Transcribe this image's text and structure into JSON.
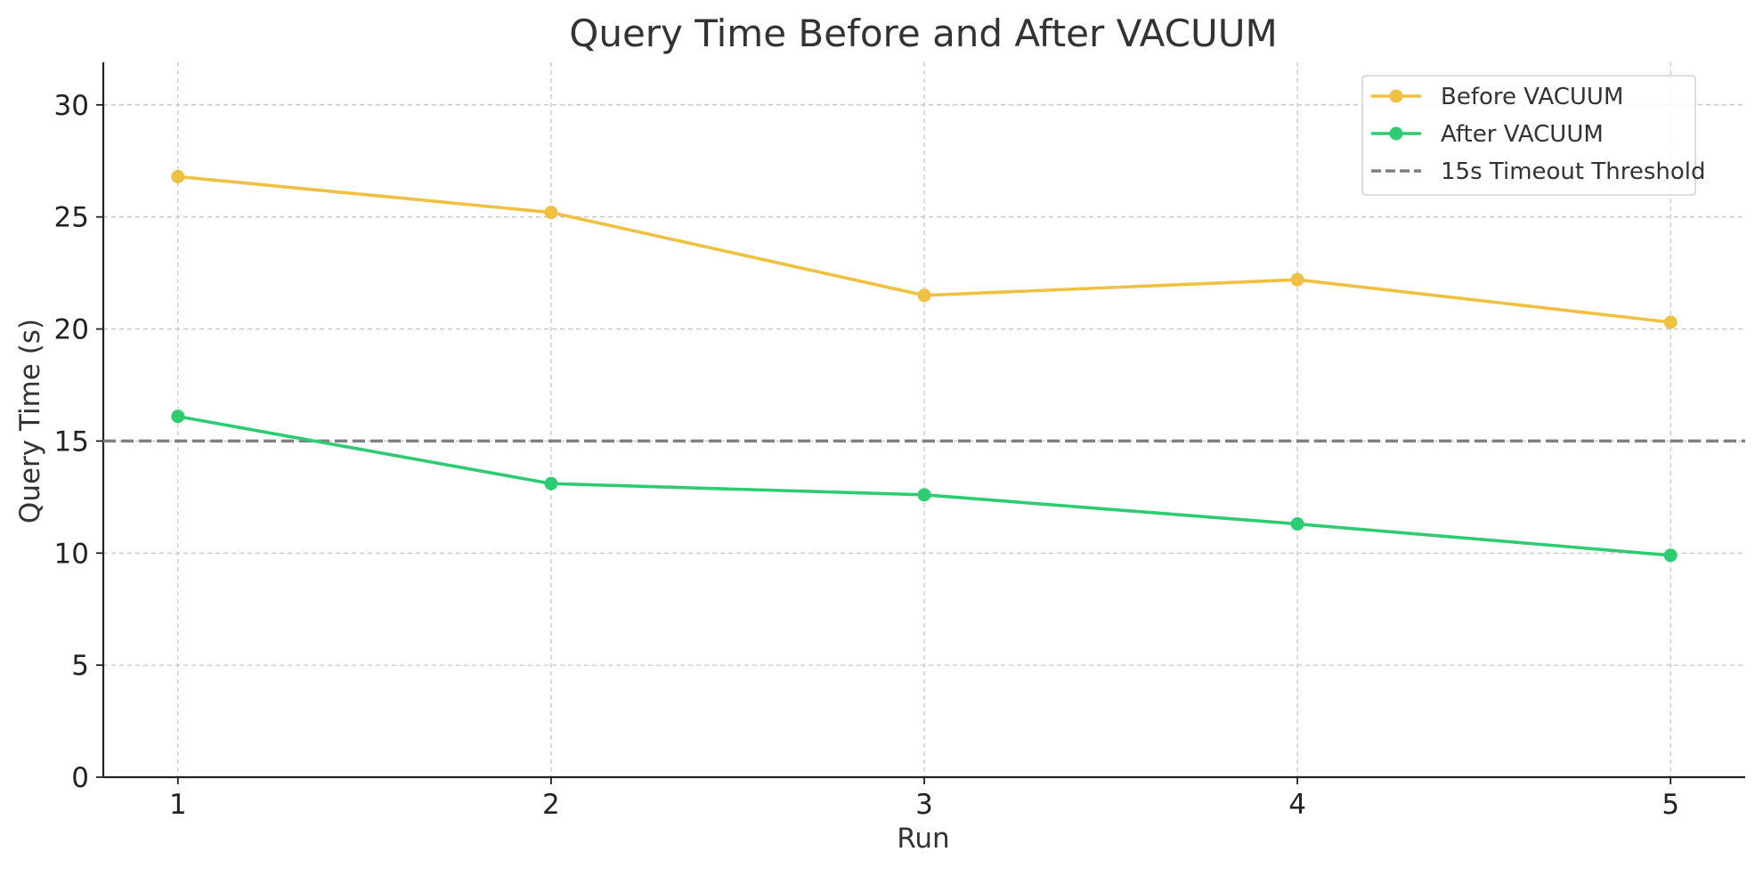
{
  "chart_data": {
    "type": "line",
    "title": "Query Time Before and After VACUUM",
    "xlabel": "Run",
    "ylabel": "Query Time (s)",
    "x": [
      1,
      2,
      3,
      4,
      5
    ],
    "xlim": [
      0.8,
      5.2
    ],
    "ylim": [
      0,
      31.9
    ],
    "yticks": [
      0,
      5,
      10,
      15,
      20,
      25,
      30
    ],
    "grid": true,
    "legend_position": "top-right",
    "series": [
      {
        "name": "Before VACUUM",
        "color": "#f0c040",
        "marker": "circle",
        "values": [
          26.8,
          25.2,
          21.5,
          22.2,
          20.3
        ]
      },
      {
        "name": "After VACUUM",
        "color": "#2ecc71",
        "marker": "circle",
        "values": [
          16.1,
          13.1,
          12.6,
          11.3,
          9.9
        ]
      }
    ],
    "reference_lines": [
      {
        "name": "15s Timeout Threshold",
        "orientation": "horizontal",
        "value": 15,
        "color": "#808080",
        "style": "dashed"
      }
    ]
  }
}
